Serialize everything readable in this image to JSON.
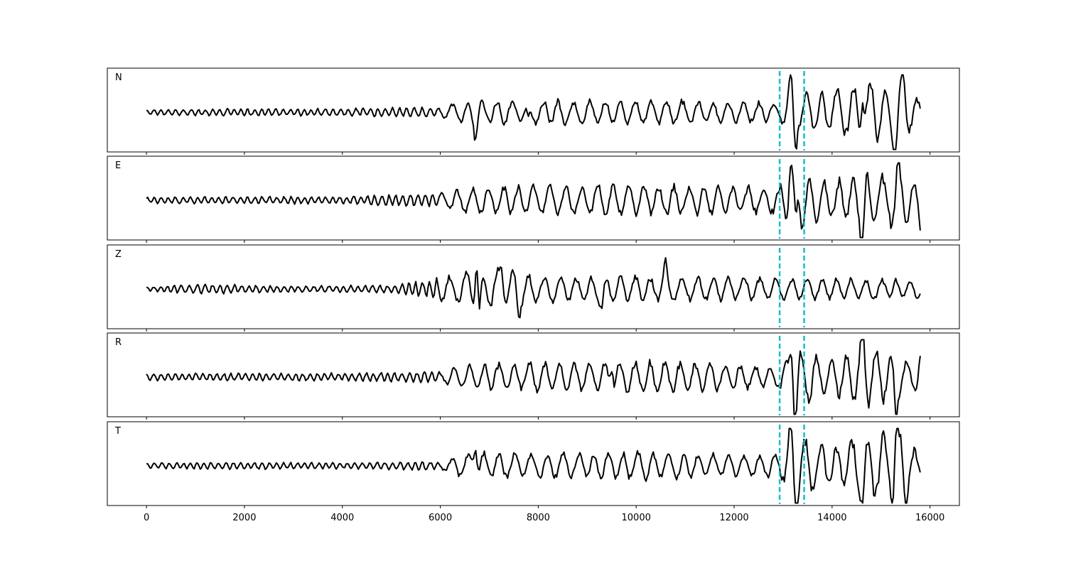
{
  "chart_data": {
    "type": "line",
    "title": "",
    "xlabel": "",
    "ylabel": "",
    "xlim": [
      -800,
      16600
    ],
    "x_ticks": [
      0,
      2000,
      4000,
      6000,
      8000,
      10000,
      12000,
      14000,
      16000
    ],
    "x_tick_labels": [
      "0",
      "2000",
      "4000",
      "6000",
      "8000",
      "10000",
      "12000",
      "14000",
      "16000"
    ],
    "markers": [
      12930,
      13430
    ],
    "marker_color": "#17becf",
    "trace_color": "#000000",
    "grid": false,
    "x_start": 0,
    "x_end": 15800,
    "panels": [
      {
        "label": "N",
        "envelope": [
          [
            0,
            0.07
          ],
          [
            1500,
            0.09
          ],
          [
            4000,
            0.1
          ],
          [
            6000,
            0.14
          ],
          [
            6500,
            0.3
          ],
          [
            8000,
            0.32
          ],
          [
            10000,
            0.33
          ],
          [
            12000,
            0.3
          ],
          [
            12900,
            0.25
          ],
          [
            13200,
            0.5
          ],
          [
            14000,
            0.6
          ],
          [
            14600,
            0.9
          ],
          [
            15300,
            0.75
          ],
          [
            15800,
            0.4
          ]
        ],
        "peaks": [
          [
            6720,
            -0.55
          ],
          [
            7800,
            -0.35
          ],
          [
            13150,
            0.75
          ],
          [
            13250,
            -0.7
          ],
          [
            14620,
            1.0
          ],
          [
            15300,
            -0.95
          ],
          [
            15450,
            0.65
          ]
        ]
      },
      {
        "label": "E",
        "envelope": [
          [
            0,
            0.08
          ],
          [
            1500,
            0.09
          ],
          [
            4000,
            0.1
          ],
          [
            6000,
            0.18
          ],
          [
            6500,
            0.35
          ],
          [
            8000,
            0.4
          ],
          [
            10000,
            0.42
          ],
          [
            12000,
            0.38
          ],
          [
            12900,
            0.35
          ],
          [
            13200,
            0.8
          ],
          [
            14000,
            0.5
          ],
          [
            14600,
            0.7
          ],
          [
            15300,
            0.7
          ],
          [
            15800,
            0.45
          ]
        ],
        "peaks": [
          [
            13150,
            0.9
          ],
          [
            13250,
            -1.0
          ],
          [
            14620,
            -0.95
          ],
          [
            15350,
            0.7
          ],
          [
            15800,
            -0.4
          ]
        ]
      },
      {
        "label": "Z",
        "envelope": [
          [
            0,
            0.05
          ],
          [
            1000,
            0.13
          ],
          [
            3000,
            0.08
          ],
          [
            5000,
            0.1
          ],
          [
            6000,
            0.3
          ],
          [
            6700,
            0.6
          ],
          [
            7300,
            0.5
          ],
          [
            8000,
            0.35
          ],
          [
            10000,
            0.35
          ],
          [
            12000,
            0.3
          ],
          [
            14000,
            0.3
          ],
          [
            15800,
            0.25
          ]
        ],
        "peaks": [
          [
            6740,
            1.0
          ],
          [
            6800,
            -0.95
          ],
          [
            7250,
            0.6
          ],
          [
            7600,
            -0.55
          ],
          [
            9300,
            -0.45
          ],
          [
            10600,
            0.5
          ]
        ]
      },
      {
        "label": "R",
        "envelope": [
          [
            0,
            0.09
          ],
          [
            1500,
            0.1
          ],
          [
            4000,
            0.1
          ],
          [
            6000,
            0.15
          ],
          [
            6500,
            0.35
          ],
          [
            8000,
            0.38
          ],
          [
            10000,
            0.45
          ],
          [
            12000,
            0.35
          ],
          [
            12900,
            0.3
          ],
          [
            13200,
            0.8
          ],
          [
            14000,
            0.45
          ],
          [
            14600,
            0.8
          ],
          [
            15300,
            0.6
          ],
          [
            15800,
            0.4
          ]
        ],
        "peaks": [
          [
            9500,
            0.55
          ],
          [
            13180,
            1.0
          ],
          [
            13250,
            -0.95
          ],
          [
            14620,
            1.0
          ],
          [
            15300,
            -0.8
          ],
          [
            15800,
            0.4
          ]
        ]
      },
      {
        "label": "T",
        "envelope": [
          [
            0,
            0.07
          ],
          [
            1800,
            0.1
          ],
          [
            4000,
            0.08
          ],
          [
            6000,
            0.12
          ],
          [
            6500,
            0.35
          ],
          [
            8000,
            0.35
          ],
          [
            10000,
            0.38
          ],
          [
            12000,
            0.3
          ],
          [
            12900,
            0.3
          ],
          [
            13200,
            0.85
          ],
          [
            14000,
            0.55
          ],
          [
            14600,
            0.9
          ],
          [
            15300,
            0.9
          ],
          [
            15800,
            0.3
          ]
        ],
        "peaks": [
          [
            6720,
            0.65
          ],
          [
            13150,
            0.85
          ],
          [
            13270,
            -1.0
          ],
          [
            14640,
            -0.95
          ],
          [
            15320,
            0.95
          ],
          [
            15500,
            -0.7
          ]
        ]
      }
    ]
  }
}
